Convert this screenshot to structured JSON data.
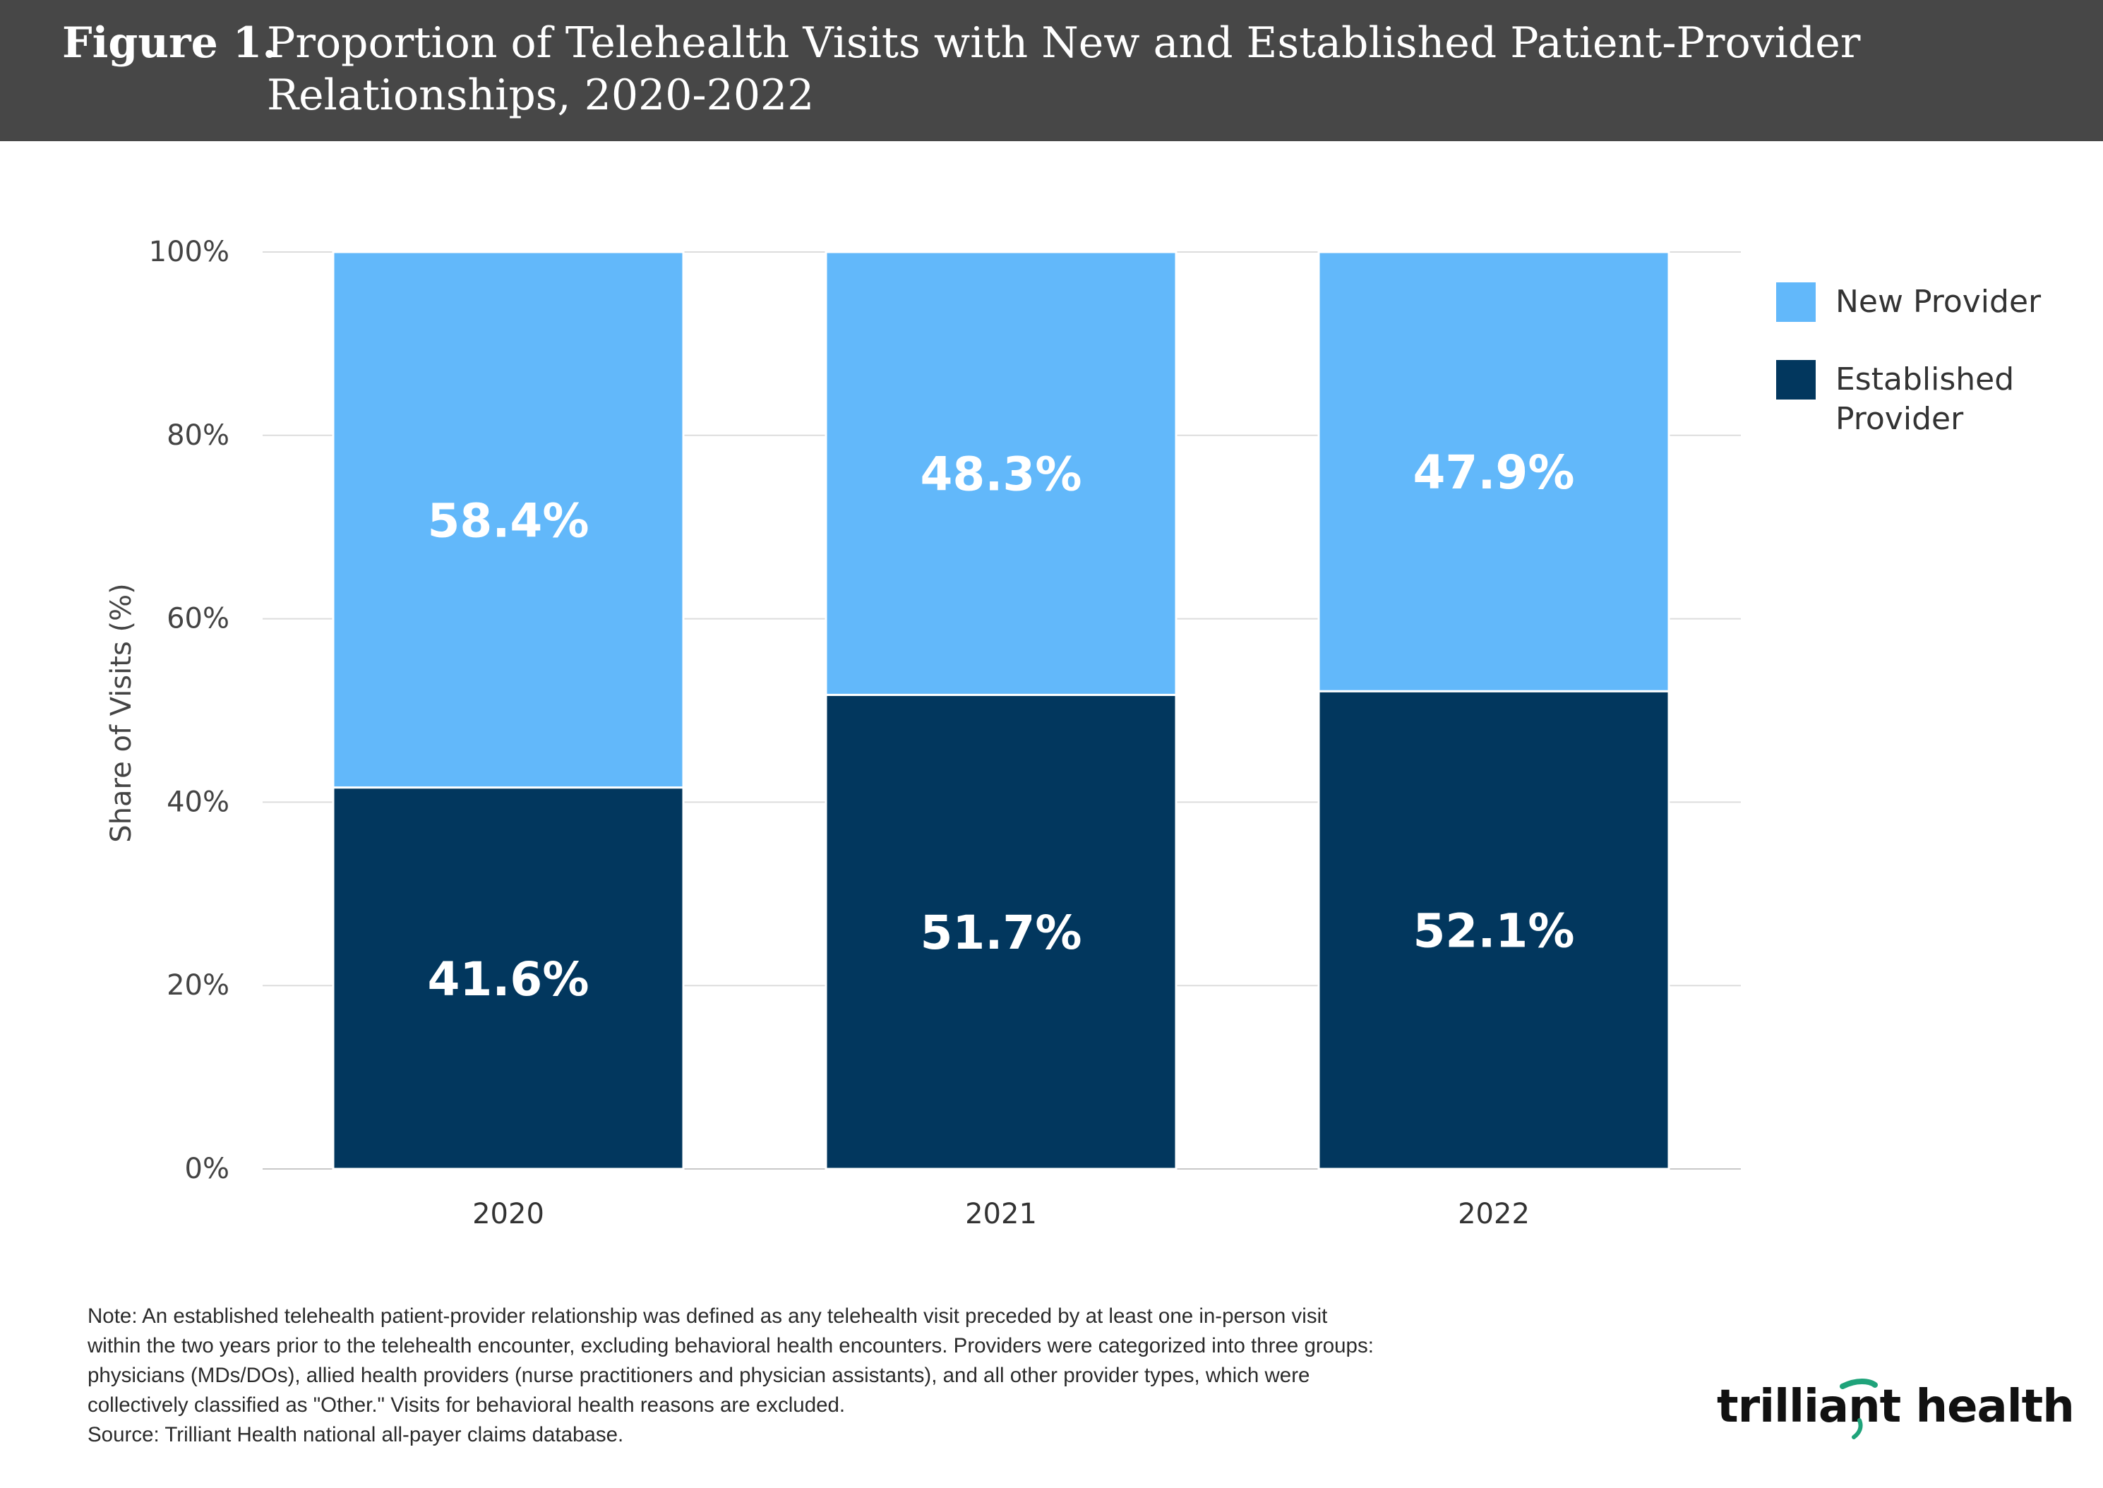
{
  "title": {
    "label": "Figure 1.",
    "text": "Proportion of Telehealth Visits with New and Established Patient-Provider Relationships, 2020-2022"
  },
  "colors": {
    "new_provider": "#62b8fa",
    "established_provider": "#02375e",
    "title_bar": "#474747",
    "logo_accent": "#1fa37a"
  },
  "chart_data": {
    "type": "bar",
    "stacked": true,
    "categories": [
      "2020",
      "2021",
      "2022"
    ],
    "series": [
      {
        "name": "Established Provider",
        "values": [
          41.6,
          51.7,
          52.1
        ],
        "labels": [
          "41.6%",
          "51.7%",
          "52.1%"
        ]
      },
      {
        "name": "New Provider",
        "values": [
          58.4,
          48.3,
          47.9
        ],
        "labels": [
          "58.4%",
          "48.3%",
          "47.9%"
        ]
      }
    ],
    "ylabel": "Share of Visits (%)",
    "xlabel": "",
    "ylim": [
      0,
      100
    ],
    "yticks": [
      "0%",
      "20%",
      "40%",
      "60%",
      "80%",
      "100%"
    ],
    "grid": true,
    "legend_position": "top-right",
    "legend": [
      "New Provider",
      "Established Provider"
    ]
  },
  "note": {
    "lines": [
      "Note: An established telehealth patient-provider relationship was defined as any telehealth visit preceded by at least one in-person visit",
      "within the two years prior to the telehealth encounter, excluding behavioral health encounters. Providers were categorized into three groups:",
      "physicians (MDs/DOs), allied health providers (nurse practitioners and physician assistants), and all other provider types, which were",
      "collectively classified as \"Other.\" Visits for behavioral health reasons are excluded.",
      "Source: Trilliant Health national all-payer claims database."
    ]
  },
  "logo": {
    "text": "trilliant health"
  }
}
